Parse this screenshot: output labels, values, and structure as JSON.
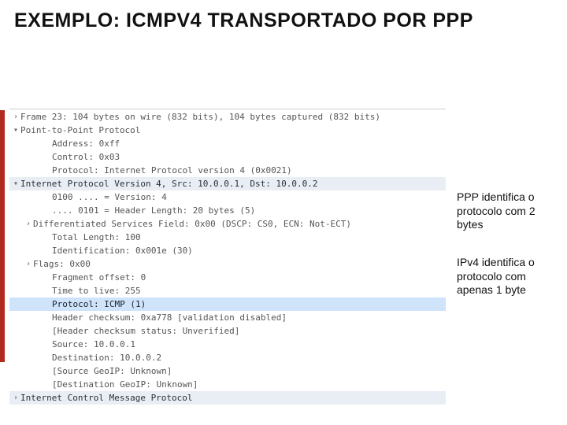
{
  "title": "EXEMPLO: ICMPV4 TRANSPORTADO POR PPP",
  "accent_color": "#b02a1e",
  "notes": {
    "n1": "PPP identifica o protocolo com 2 bytes",
    "n2": "IPv4 identifica o protocolo com apenas 1 byte"
  },
  "tree": {
    "rows": [
      {
        "indent": 0,
        "arrow": ">",
        "hl": false,
        "sel": false,
        "text": "Frame 23: 104 bytes on wire (832 bits), 104 bytes captured (832 bits)"
      },
      {
        "indent": 0,
        "arrow": "v",
        "hl": false,
        "sel": false,
        "text": "Point-to-Point Protocol"
      },
      {
        "indent": 2,
        "arrow": "",
        "hl": false,
        "sel": false,
        "text": "Address: 0xff"
      },
      {
        "indent": 2,
        "arrow": "",
        "hl": false,
        "sel": false,
        "text": "Control: 0x03"
      },
      {
        "indent": 2,
        "arrow": "",
        "hl": false,
        "sel": false,
        "text": "Protocol: Internet Protocol version 4 (0x0021)"
      },
      {
        "indent": 0,
        "arrow": "v",
        "hl": true,
        "sel": false,
        "text": "Internet Protocol Version 4, Src: 10.0.0.1, Dst: 10.0.0.2"
      },
      {
        "indent": 2,
        "arrow": "",
        "hl": false,
        "sel": false,
        "text": "0100 .... = Version: 4"
      },
      {
        "indent": 2,
        "arrow": "",
        "hl": false,
        "sel": false,
        "text": ".... 0101 = Header Length: 20 bytes (5)"
      },
      {
        "indent": 1,
        "arrow": ">",
        "hl": false,
        "sel": false,
        "text": "Differentiated Services Field: 0x00 (DSCP: CS0, ECN: Not-ECT)"
      },
      {
        "indent": 2,
        "arrow": "",
        "hl": false,
        "sel": false,
        "text": "Total Length: 100"
      },
      {
        "indent": 2,
        "arrow": "",
        "hl": false,
        "sel": false,
        "text": "Identification: 0x001e (30)"
      },
      {
        "indent": 1,
        "arrow": ">",
        "hl": false,
        "sel": false,
        "text": "Flags: 0x00"
      },
      {
        "indent": 2,
        "arrow": "",
        "hl": false,
        "sel": false,
        "text": "Fragment offset: 0"
      },
      {
        "indent": 2,
        "arrow": "",
        "hl": false,
        "sel": false,
        "text": "Time to live: 255"
      },
      {
        "indent": 2,
        "arrow": "",
        "hl": false,
        "sel": true,
        "text": "Protocol: ICMP (1)"
      },
      {
        "indent": 2,
        "arrow": "",
        "hl": false,
        "sel": false,
        "text": "Header checksum: 0xa778 [validation disabled]"
      },
      {
        "indent": 2,
        "arrow": "",
        "hl": false,
        "sel": false,
        "text": "[Header checksum status: Unverified]"
      },
      {
        "indent": 2,
        "arrow": "",
        "hl": false,
        "sel": false,
        "text": "Source: 10.0.0.1"
      },
      {
        "indent": 2,
        "arrow": "",
        "hl": false,
        "sel": false,
        "text": "Destination: 10.0.0.2"
      },
      {
        "indent": 2,
        "arrow": "",
        "hl": false,
        "sel": false,
        "text": "[Source GeoIP: Unknown]"
      },
      {
        "indent": 2,
        "arrow": "",
        "hl": false,
        "sel": false,
        "text": "[Destination GeoIP: Unknown]"
      },
      {
        "indent": 0,
        "arrow": ">",
        "hl": true,
        "sel": false,
        "text": "Internet Control Message Protocol"
      }
    ]
  }
}
